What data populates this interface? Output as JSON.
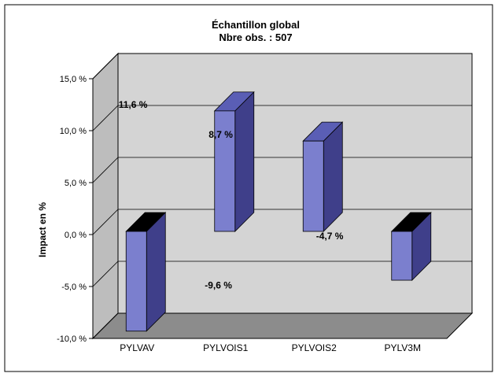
{
  "chart_data": {
    "type": "bar",
    "title": "Échantillon global",
    "subtitle": "Nbre obs. : 507",
    "xlabel": "",
    "ylabel": "Impact en %",
    "categories": [
      "PYLVAV",
      "PYLVOIS1",
      "PYLVOIS2",
      "PYLV3M"
    ],
    "values": [
      -9.6,
      11.6,
      8.7,
      -4.7
    ],
    "data_labels": [
      "-9,6 %",
      "11,6 %",
      "8,7 %",
      "-4,7 %"
    ],
    "ylim": [
      -10,
      15
    ],
    "yticks": [
      -10,
      -5,
      0,
      5,
      10,
      15
    ],
    "ytick_labels": [
      "-10,0 %",
      "-5,0 %",
      "0,0 %",
      "5,0 %",
      "10,0 %",
      "15,0 %"
    ],
    "grid": true,
    "legend": "none",
    "colors": {
      "bar_front": "#7b7fce",
      "bar_side": "#3f3f8a",
      "bar_top": "#5a5eb5",
      "bar_cap_negative": "#000000",
      "wall": "#d4d4d4",
      "floor": "#8c8c8c",
      "grid": "#000000"
    }
  }
}
